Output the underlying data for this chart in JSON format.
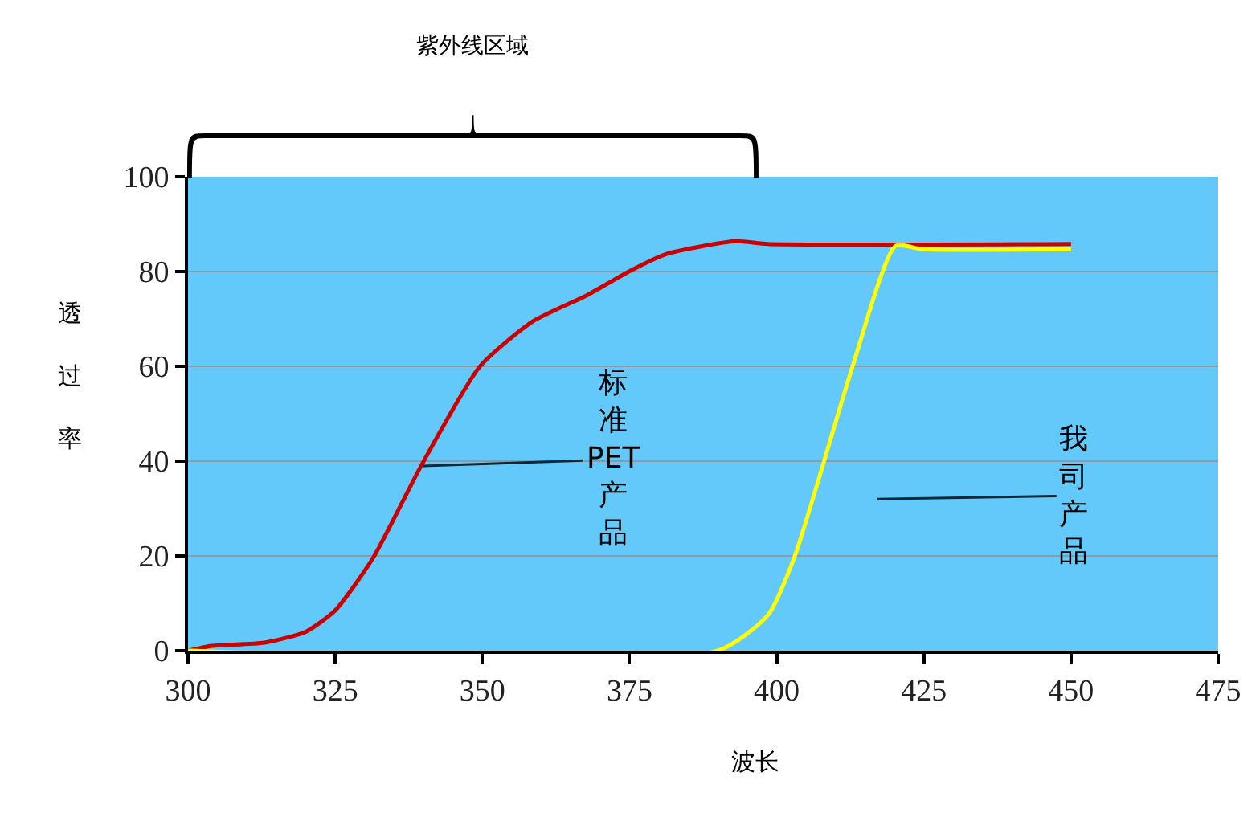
{
  "chart_data": {
    "type": "line",
    "xlabel": "波长",
    "ylabel": "透过率",
    "x": [
      300,
      304,
      313,
      320,
      325,
      331.5,
      339.6,
      349.6,
      358.6,
      367.8,
      374.9,
      381.3,
      393,
      398.5,
      450
    ],
    "series": [
      {
        "color": "#cc0000",
        "values": [
          0,
          1,
          1.7,
          4,
          8.5,
          19.7,
          39,
          60,
          69.5,
          75,
          80,
          83.7,
          86.4,
          85.8,
          85.8
        ]
      },
      {
        "color": "#ffff00",
        "x": [
          300,
          390,
          398.5,
          403,
          412.9,
          420.2,
          424.8,
          450
        ],
        "values": [
          0,
          0,
          7.5,
          19.7,
          60,
          85.4,
          84.7,
          84.7
        ]
      }
    ],
    "xlim": [
      300,
      475
    ],
    "xticks": [
      300,
      325,
      350,
      375,
      400,
      425,
      450,
      475
    ],
    "ylim": [
      0,
      100
    ],
    "yticks": [
      0,
      20,
      40,
      60,
      80,
      100
    ],
    "grid": "y",
    "marker": "none",
    "line_style": "solid",
    "annotations": [
      {
        "text": "标准PET产品",
        "x": 340,
        "y": 39
      },
      "我司产品",
      "紫外线区域"
    ]
  }
}
